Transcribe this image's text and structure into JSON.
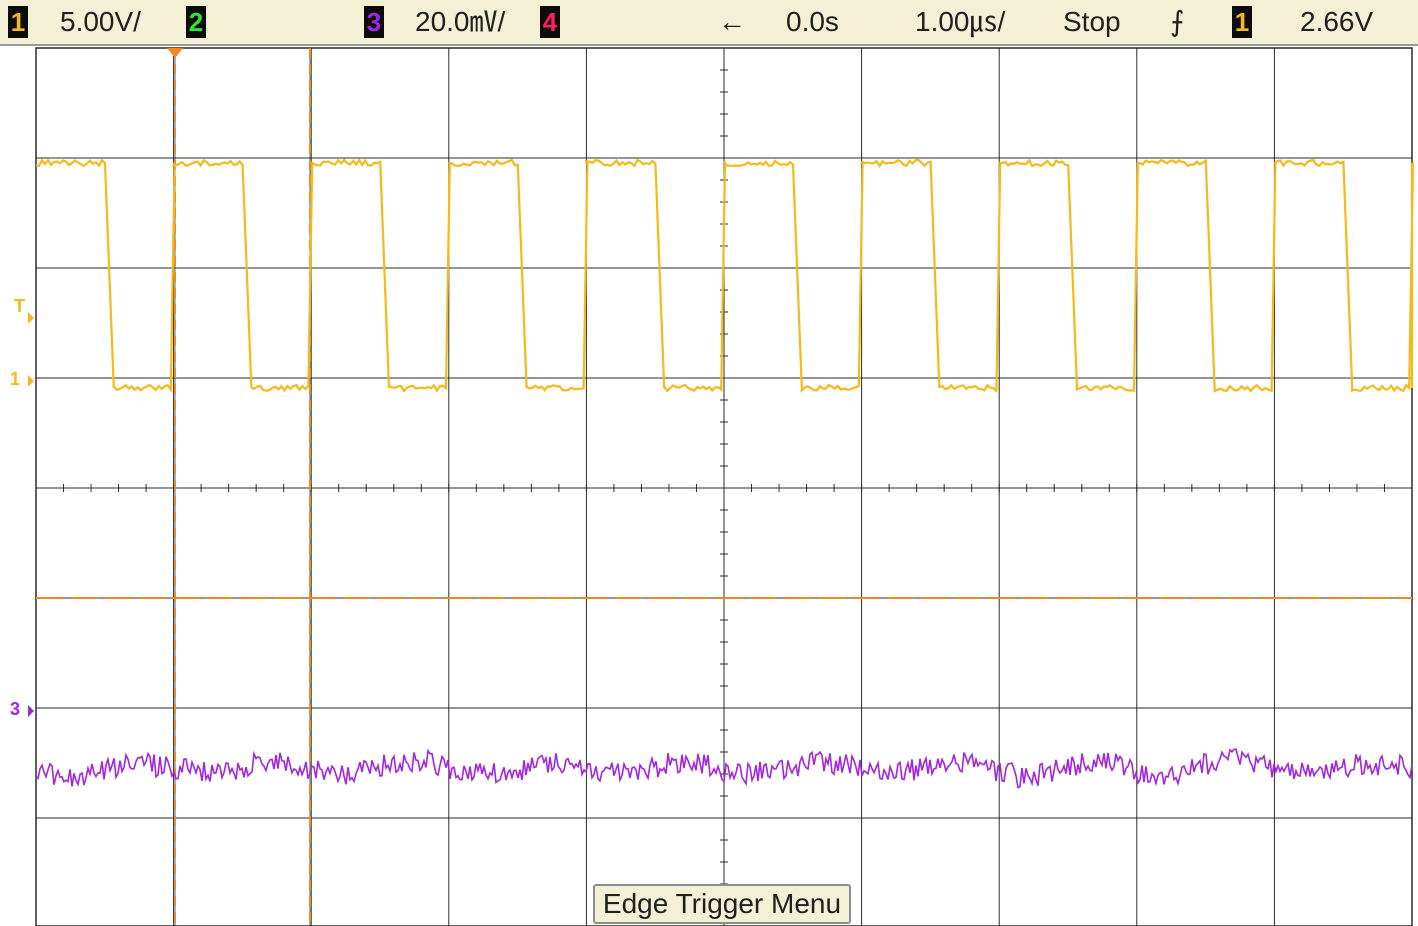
{
  "status_bar": {
    "ch1_label": "1",
    "ch1_scale": "5.00V/",
    "ch2_label": "2",
    "ch3_label": "3",
    "ch3_scale": "20.0㎷/",
    "ch4_label": "4",
    "delay_arrow": "←",
    "delay": "0.0s",
    "timebase": "1.00㎲/",
    "run_state": "Stop",
    "trigger_slope_icon": "rising-edge-icon",
    "trigger_slope_glyph": "⨍",
    "trigger_source": "1",
    "trigger_level": "2.66V"
  },
  "markers": {
    "trigger_level_marker": "T",
    "ch1_ground_marker": "1",
    "ch3_ground_marker": "3"
  },
  "menu_label": "Edge Trigger Menu",
  "colors": {
    "background": "#ffffff",
    "status_bar": "#f3f0d6",
    "grid": "#2b2b2b",
    "ch1": "#f6b91a",
    "ch2": "#2ee62e",
    "ch3": "#a126e0",
    "ch4": "#ff1f5a",
    "cursor": "#f08a24",
    "cursor_dash": "#333333"
  },
  "scope_display": {
    "horizontal_divisions": 10,
    "vertical_divisions": 8,
    "channel1": {
      "waveform": "square",
      "high_division": 3.9,
      "low_division": 1.8,
      "period_divisions": 1.0,
      "duty_cycle": 0.5
    },
    "channel3": {
      "waveform": "noise",
      "center_division": -1.45,
      "amplitude_division": 0.12
    },
    "cursors_divisions": [
      1.0,
      2.0
    ],
    "trigger_marker_division": 0.6
  }
}
